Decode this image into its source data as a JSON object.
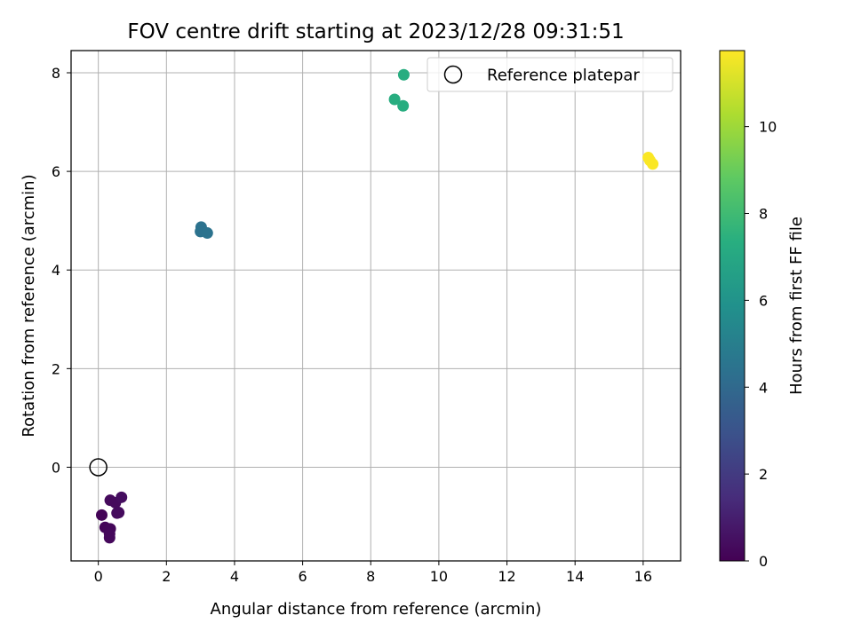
{
  "chart_data": {
    "type": "scatter",
    "title": "FOV centre drift starting at 2023/12/28 09:31:51",
    "xlabel": "Angular distance from reference (arcmin)",
    "ylabel": "Rotation from reference (arcmin)",
    "xlim": [
      -0.8,
      17.1
    ],
    "ylim": [
      -1.9,
      8.45
    ],
    "xticks": [
      0,
      2,
      4,
      6,
      8,
      10,
      12,
      14,
      16
    ],
    "yticks": [
      0,
      2,
      4,
      6,
      8
    ],
    "grid": true,
    "legend": {
      "placement": "top-right",
      "entries": [
        "Reference platepar"
      ]
    },
    "reference_point": {
      "x": 0,
      "y": 0
    },
    "colorbar": {
      "label": "Hours from first FF file",
      "colormap": "viridis",
      "range": [
        0,
        11.75
      ],
      "ticks": [
        0,
        2,
        4,
        6,
        8,
        10
      ]
    },
    "series": [
      {
        "values": [
          {
            "x": 0.1,
            "y": -0.97,
            "hours": 0.1
          },
          {
            "x": 0.2,
            "y": -1.22,
            "hours": 0.15
          },
          {
            "x": 0.3,
            "y": -1.27,
            "hours": 0.2
          },
          {
            "x": 0.35,
            "y": -1.25,
            "hours": 0.2
          },
          {
            "x": 0.33,
            "y": -1.35,
            "hours": 0.25
          },
          {
            "x": 0.33,
            "y": -1.43,
            "hours": 0.25
          },
          {
            "x": 0.35,
            "y": -0.67,
            "hours": 0.3
          },
          {
            "x": 0.5,
            "y": -0.72,
            "hours": 0.3
          },
          {
            "x": 0.55,
            "y": -0.93,
            "hours": 0.35
          },
          {
            "x": 0.6,
            "y": -0.92,
            "hours": 0.35
          },
          {
            "x": 0.68,
            "y": -0.61,
            "hours": 0.4
          },
          {
            "x": 3.0,
            "y": 4.78,
            "hours": 4.4
          },
          {
            "x": 3.02,
            "y": 4.87,
            "hours": 4.4
          },
          {
            "x": 3.2,
            "y": 4.75,
            "hours": 4.45
          },
          {
            "x": 8.7,
            "y": 7.46,
            "hours": 7.3
          },
          {
            "x": 8.95,
            "y": 7.33,
            "hours": 7.3
          },
          {
            "x": 8.97,
            "y": 7.96,
            "hours": 7.3
          },
          {
            "x": 16.15,
            "y": 6.28,
            "hours": 11.7
          },
          {
            "x": 16.2,
            "y": 6.22,
            "hours": 11.7
          },
          {
            "x": 16.28,
            "y": 6.15,
            "hours": 11.7
          }
        ]
      }
    ]
  }
}
